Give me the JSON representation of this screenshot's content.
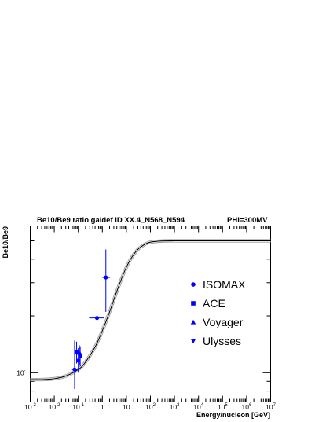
{
  "chart_data": {
    "type": "line",
    "title": "Be10/Be9 ratio galdef ID XX.4_N568_N594",
    "title_right": "PHI=300MV",
    "xlabel": "Energy/nucleon [GeV]",
    "ylabel": "Be10/Be9",
    "xscale": "log",
    "yscale": "log",
    "xlim": [
      0.001,
      10000000
    ],
    "ylim": [
      0.07,
      0.6
    ],
    "grid": false,
    "legend_position": "right-middle",
    "x_ticks": [
      {
        "base": "10",
        "exp": "-3",
        "value": 0.001
      },
      {
        "base": "10",
        "exp": "-2",
        "value": 0.01
      },
      {
        "base": "10",
        "exp": "-1",
        "value": 0.1
      },
      {
        "base": "1",
        "exp": "",
        "value": 1
      },
      {
        "base": "10",
        "exp": "",
        "value": 10
      },
      {
        "base": "10",
        "exp": "2",
        "value": 100
      },
      {
        "base": "10",
        "exp": "3",
        "value": 1000
      },
      {
        "base": "10",
        "exp": "4",
        "value": 10000
      },
      {
        "base": "10",
        "exp": "5",
        "value": 100000
      },
      {
        "base": "10",
        "exp": "6",
        "value": 1000000
      },
      {
        "base": "10",
        "exp": "7",
        "value": 10000000
      }
    ],
    "y_ticks": [
      {
        "base": "10",
        "exp": "-1",
        "value": 0.1
      }
    ],
    "model": {
      "x": [
        0.001,
        0.003,
        0.01,
        0.03,
        0.1,
        0.2,
        0.5,
        1,
        2,
        4,
        8,
        15,
        30,
        60,
        100,
        300,
        1000,
        10000,
        10000000
      ],
      "y": [
        0.092,
        0.092,
        0.093,
        0.096,
        0.104,
        0.114,
        0.137,
        0.167,
        0.21,
        0.27,
        0.34,
        0.4,
        0.45,
        0.48,
        0.492,
        0.499,
        0.5,
        0.5,
        0.5
      ]
    },
    "series": [
      {
        "name": "ISOMAX",
        "marker": "circle",
        "color": "#0000ff",
        "points": [
          {
            "x": 0.07,
            "y": 0.104,
            "xerr": [
              0.055,
              0.09
            ],
            "yerr": [
              0.082,
              0.148
            ]
          },
          {
            "x": 0.085,
            "y": 0.129,
            "xerr": [
              0.075,
              0.095
            ],
            "yerr": [
              0.112,
              0.146
            ]
          },
          {
            "x": 0.1,
            "y": 0.116,
            "xerr": [
              0.09,
              0.11
            ],
            "yerr": [
              0.1,
              0.135
            ]
          },
          {
            "x": 0.11,
            "y": 0.126,
            "xerr": [
              0.1,
              0.12
            ],
            "yerr": [
              0.11,
              0.14
            ]
          },
          {
            "x": 0.12,
            "y": 0.123,
            "xerr": [
              0.11,
              0.13
            ],
            "yerr": [
              0.108,
              0.138
            ]
          },
          {
            "x": 0.6,
            "y": 0.195,
            "xerr": [
              0.28,
              1.2
            ],
            "yerr": [
              0.135,
              0.27
            ]
          },
          {
            "x": 1.4,
            "y": 0.32,
            "xerr": [
              1.0,
              2.1
            ],
            "yerr": [
              0.21,
              0.45
            ]
          }
        ]
      },
      {
        "name": "ACE",
        "marker": "square",
        "color": "#0000ff",
        "points": []
      },
      {
        "name": "Voyager",
        "marker": "triangle-up",
        "color": "#0000ff",
        "points": []
      },
      {
        "name": "Ulysses",
        "marker": "triangle-down",
        "color": "#0000ff",
        "points": []
      }
    ]
  }
}
